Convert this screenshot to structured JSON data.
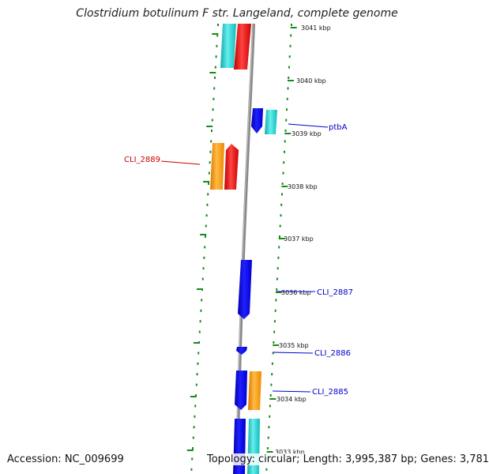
{
  "title": "Clostridium botulinum F str. Langeland, complete genome",
  "footer": {
    "accession": "Accession: NC_009699",
    "topology": "Topology: circular; Length: 3,995,387 bp; Genes: 3,781"
  },
  "scale_labels": [
    "3041 kbp",
    "3040 kbp",
    "3039 kbp",
    "3038 kbp",
    "3037 kbp",
    "3036 kbp",
    "3035 kbp",
    "3034 kbp",
    "3033 kbp"
  ],
  "gene_labels": [
    {
      "text": "ptbA",
      "color": "#0000cc"
    },
    {
      "text": "CLI_2889",
      "color": "#cc0000"
    },
    {
      "text": "CLI_2887",
      "color": "#0000cc"
    },
    {
      "text": "CLI_2886",
      "color": "#0000cc"
    },
    {
      "text": "CLI_2885",
      "color": "#0000cc"
    }
  ],
  "colors": {
    "backbone": "#808080",
    "ticks": "#1a8a1a",
    "blue": "#0000ee",
    "cyan": "#22cccc",
    "red": "#ee1111",
    "orange": "#ff9900"
  }
}
